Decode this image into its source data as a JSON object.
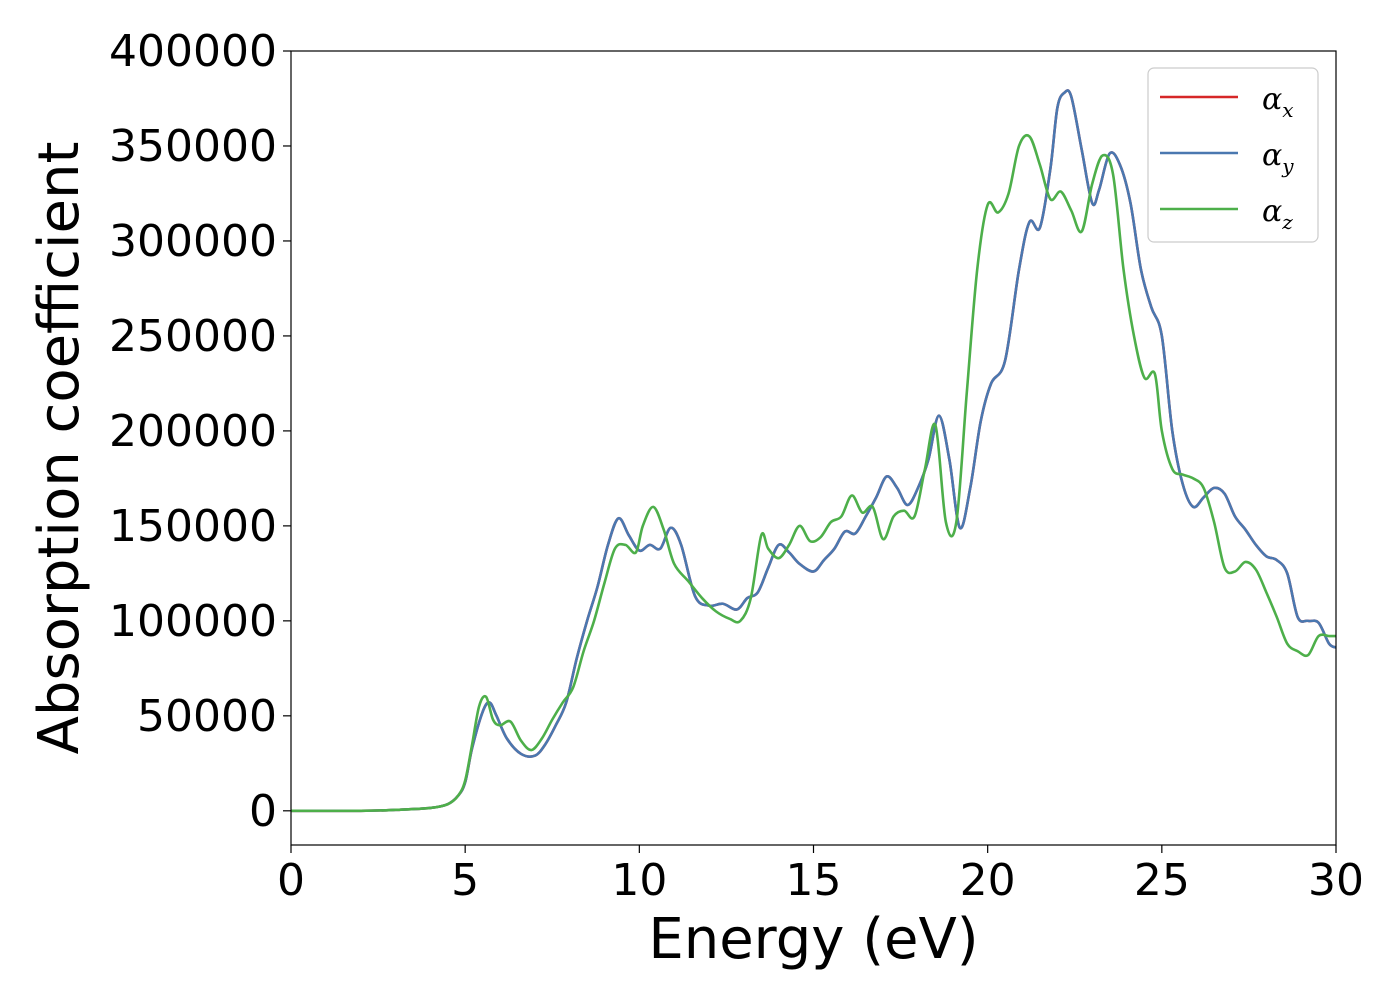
{
  "chart_data": {
    "type": "line",
    "xlabel": "Energy (eV)",
    "ylabel": "Absorption coefficient",
    "xlim": [
      0,
      30
    ],
    "ylim": [
      -18000,
      400000
    ],
    "xticks": [
      0,
      5,
      10,
      15,
      20,
      25,
      30
    ],
    "xtick_labels": [
      "0",
      "5",
      "10",
      "15",
      "20",
      "25",
      "30"
    ],
    "yticks": [
      0,
      50000,
      100000,
      150000,
      200000,
      250000,
      300000,
      350000,
      400000
    ],
    "ytick_labels": [
      "0",
      "50000",
      "100000",
      "150000",
      "200000",
      "250000",
      "300000",
      "350000",
      "400000"
    ],
    "grid": false,
    "legend_position": "top-right",
    "series": [
      {
        "name": "α",
        "subscript": "x",
        "color": "#d62728",
        "x": [
          0,
          2,
          3,
          4,
          4.5,
          4.8,
          5.0,
          5.2,
          5.5,
          5.7,
          5.9,
          6.2,
          6.6,
          7.0,
          7.3,
          7.6,
          7.9,
          8.2,
          8.5,
          8.8,
          9.1,
          9.4,
          9.7,
          10.0,
          10.3,
          10.6,
          10.9,
          11.2,
          11.6,
          12.0,
          12.4,
          12.8,
          13.1,
          13.4,
          13.7,
          14.0,
          14.3,
          14.6,
          15.0,
          15.3,
          15.6,
          15.9,
          16.2,
          16.5,
          16.8,
          17.1,
          17.4,
          17.7,
          18.0,
          18.3,
          18.6,
          18.9,
          19.2,
          19.5,
          19.8,
          20.1,
          20.5,
          20.9,
          21.2,
          21.5,
          21.8,
          22.0,
          22.2,
          22.4,
          22.7,
          23.0,
          23.2,
          23.5,
          23.8,
          24.1,
          24.4,
          24.7,
          25.0,
          25.3,
          25.6,
          25.9,
          26.2,
          26.5,
          26.8,
          27.1,
          27.4,
          27.7,
          28.0,
          28.3,
          28.6,
          28.9,
          29.2,
          29.5,
          29.8,
          30.0
        ],
        "y": [
          0,
          0,
          500,
          1500,
          3500,
          8000,
          15000,
          33000,
          52000,
          57000,
          50000,
          38000,
          30000,
          29000,
          35000,
          45000,
          57000,
          80000,
          100000,
          118000,
          140000,
          154000,
          145000,
          137000,
          140000,
          138000,
          149000,
          140000,
          113000,
          108000,
          109000,
          106000,
          112000,
          115000,
          128000,
          140000,
          136000,
          130000,
          126000,
          132000,
          138000,
          147000,
          146000,
          155000,
          165000,
          176000,
          170000,
          161000,
          170000,
          185000,
          208000,
          185000,
          149000,
          170000,
          205000,
          225000,
          237000,
          285000,
          310000,
          307000,
          338000,
          370000,
          378000,
          376000,
          348000,
          320000,
          327000,
          346000,
          340000,
          320000,
          285000,
          265000,
          250000,
          200000,
          172000,
          160000,
          165000,
          170000,
          167000,
          155000,
          148000,
          140000,
          134000,
          132000,
          125000,
          102000,
          100000,
          99000,
          88000,
          86000
        ]
      },
      {
        "name": "α",
        "subscript": "y",
        "color": "#4a78b0",
        "x": [
          0,
          2,
          3,
          4,
          4.5,
          4.8,
          5.0,
          5.2,
          5.5,
          5.7,
          5.9,
          6.2,
          6.6,
          7.0,
          7.3,
          7.6,
          7.9,
          8.2,
          8.5,
          8.8,
          9.1,
          9.4,
          9.7,
          10.0,
          10.3,
          10.6,
          10.9,
          11.2,
          11.6,
          12.0,
          12.4,
          12.8,
          13.1,
          13.4,
          13.7,
          14.0,
          14.3,
          14.6,
          15.0,
          15.3,
          15.6,
          15.9,
          16.2,
          16.5,
          16.8,
          17.1,
          17.4,
          17.7,
          18.0,
          18.3,
          18.6,
          18.9,
          19.2,
          19.5,
          19.8,
          20.1,
          20.5,
          20.9,
          21.2,
          21.5,
          21.8,
          22.0,
          22.2,
          22.4,
          22.7,
          23.0,
          23.2,
          23.5,
          23.8,
          24.1,
          24.4,
          24.7,
          25.0,
          25.3,
          25.6,
          25.9,
          26.2,
          26.5,
          26.8,
          27.1,
          27.4,
          27.7,
          28.0,
          28.3,
          28.6,
          28.9,
          29.2,
          29.5,
          29.8,
          30.0
        ],
        "y": [
          0,
          0,
          500,
          1500,
          3500,
          8000,
          15000,
          33000,
          52000,
          57000,
          50000,
          38000,
          30000,
          29000,
          35000,
          45000,
          57000,
          80000,
          100000,
          118000,
          140000,
          154000,
          145000,
          137000,
          140000,
          138000,
          149000,
          140000,
          113000,
          108000,
          109000,
          106000,
          112000,
          115000,
          128000,
          140000,
          136000,
          130000,
          126000,
          132000,
          138000,
          147000,
          146000,
          155000,
          165000,
          176000,
          170000,
          161000,
          170000,
          185000,
          208000,
          185000,
          149000,
          170000,
          205000,
          225000,
          237000,
          285000,
          310000,
          307000,
          338000,
          370000,
          378000,
          376000,
          348000,
          320000,
          327000,
          346000,
          340000,
          320000,
          285000,
          265000,
          250000,
          200000,
          172000,
          160000,
          165000,
          170000,
          167000,
          155000,
          148000,
          140000,
          134000,
          132000,
          125000,
          102000,
          100000,
          99000,
          88000,
          86000
        ]
      },
      {
        "name": "α",
        "subscript": "z",
        "color": "#4daf4a",
        "x": [
          0,
          2,
          3,
          4,
          4.5,
          4.8,
          5.0,
          5.2,
          5.4,
          5.6,
          5.8,
          6.0,
          6.3,
          6.6,
          6.9,
          7.2,
          7.5,
          7.8,
          8.1,
          8.4,
          8.7,
          9.0,
          9.3,
          9.6,
          9.9,
          10.1,
          10.4,
          10.7,
          11.0,
          11.4,
          11.8,
          12.2,
          12.6,
          12.9,
          13.2,
          13.5,
          13.7,
          14.0,
          14.3,
          14.6,
          14.9,
          15.2,
          15.5,
          15.8,
          16.1,
          16.4,
          16.7,
          17.0,
          17.3,
          17.6,
          17.9,
          18.2,
          18.5,
          18.8,
          19.1,
          19.4,
          19.7,
          20.0,
          20.3,
          20.6,
          20.9,
          21.2,
          21.5,
          21.8,
          22.1,
          22.4,
          22.7,
          23.0,
          23.3,
          23.6,
          23.9,
          24.2,
          24.5,
          24.8,
          25.0,
          25.3,
          25.6,
          25.9,
          26.2,
          26.5,
          26.8,
          27.1,
          27.4,
          27.7,
          28.0,
          28.3,
          28.6,
          28.9,
          29.2,
          29.5,
          29.8,
          30.0
        ],
        "y": [
          0,
          0,
          500,
          1500,
          3500,
          8000,
          16000,
          35000,
          55000,
          60000,
          48000,
          45000,
          47000,
          37000,
          32000,
          38000,
          48000,
          57000,
          65000,
          84000,
          100000,
          120000,
          138000,
          140000,
          136000,
          150000,
          160000,
          148000,
          130000,
          121000,
          112000,
          105000,
          101000,
          100000,
          112000,
          145000,
          138000,
          133000,
          140000,
          150000,
          142000,
          144000,
          152000,
          155000,
          166000,
          157000,
          160000,
          143000,
          155000,
          158000,
          155000,
          180000,
          203000,
          152000,
          152000,
          220000,
          285000,
          319000,
          315000,
          325000,
          350000,
          355000,
          340000,
          322000,
          326000,
          316000,
          305000,
          330000,
          345000,
          335000,
          285000,
          250000,
          228000,
          230000,
          200000,
          180000,
          177000,
          175000,
          170000,
          152000,
          128000,
          126000,
          131000,
          127000,
          115000,
          102000,
          88000,
          84000,
          82000,
          92000,
          92000,
          92000
        ]
      }
    ]
  }
}
